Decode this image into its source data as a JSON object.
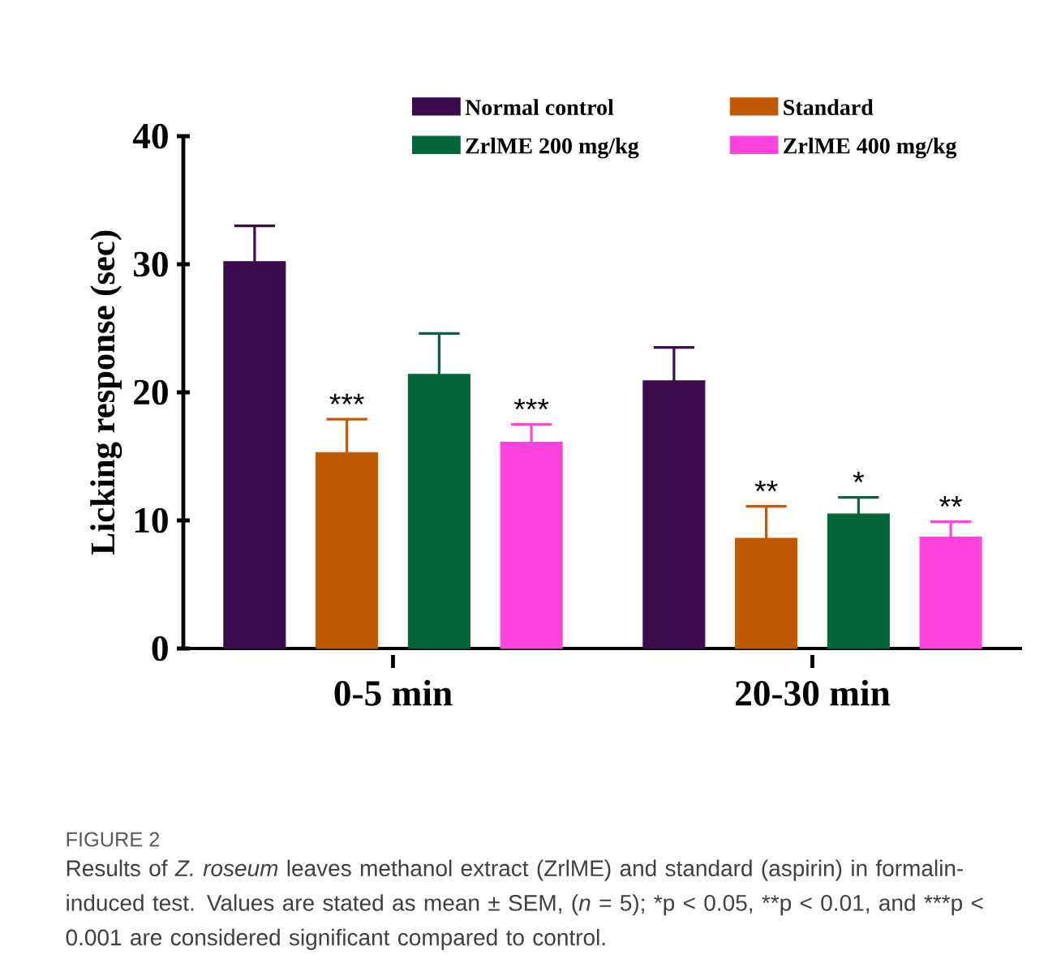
{
  "chart_data": {
    "type": "bar",
    "ylabel": "Licking response (sec)",
    "categories": [
      "0-5 min",
      "20-30 min"
    ],
    "series": [
      {
        "name": "Normal control",
        "color": "#3b0a4f",
        "values": [
          30.2,
          20.9
        ],
        "errors": [
          [
            30.2,
            33.0
          ],
          [
            20.9,
            23.5
          ]
        ]
      },
      {
        "name": "Standard",
        "color": "#c05a00",
        "values": [
          15.3,
          8.6
        ],
        "errors": [
          [
            15.3,
            17.9
          ],
          [
            8.6,
            11.1
          ]
        ]
      },
      {
        "name": "ZrlME 200 mg/kg",
        "color": "#05653a",
        "values": [
          21.4,
          10.5
        ],
        "errors": [
          [
            21.4,
            24.6
          ],
          [
            10.5,
            11.8
          ]
        ]
      },
      {
        "name": "ZrlME 400 mg/kg",
        "color": "#ff44dd",
        "values": [
          16.1,
          8.7
        ],
        "errors": [
          [
            16.1,
            17.5
          ],
          [
            8.7,
            9.9
          ]
        ]
      }
    ],
    "ylim": [
      0,
      40
    ],
    "yticks": [
      0,
      10,
      20,
      30,
      40
    ],
    "legend": "top",
    "annotations": [
      "***",
      "***",
      "**",
      "*",
      "**",
      "FIGURE 2",
      "Results of *Z. roseum* leaves methanol extract (ZrlME) and standard (aspirin) in formalin-induced test. Values are stated as mean ± SEM, (*n* = 5); *p < 0.05,",
      "**p < 0.01, and",
      "***p < 0.001 are considered significant compared to control."
    ]
  }
}
